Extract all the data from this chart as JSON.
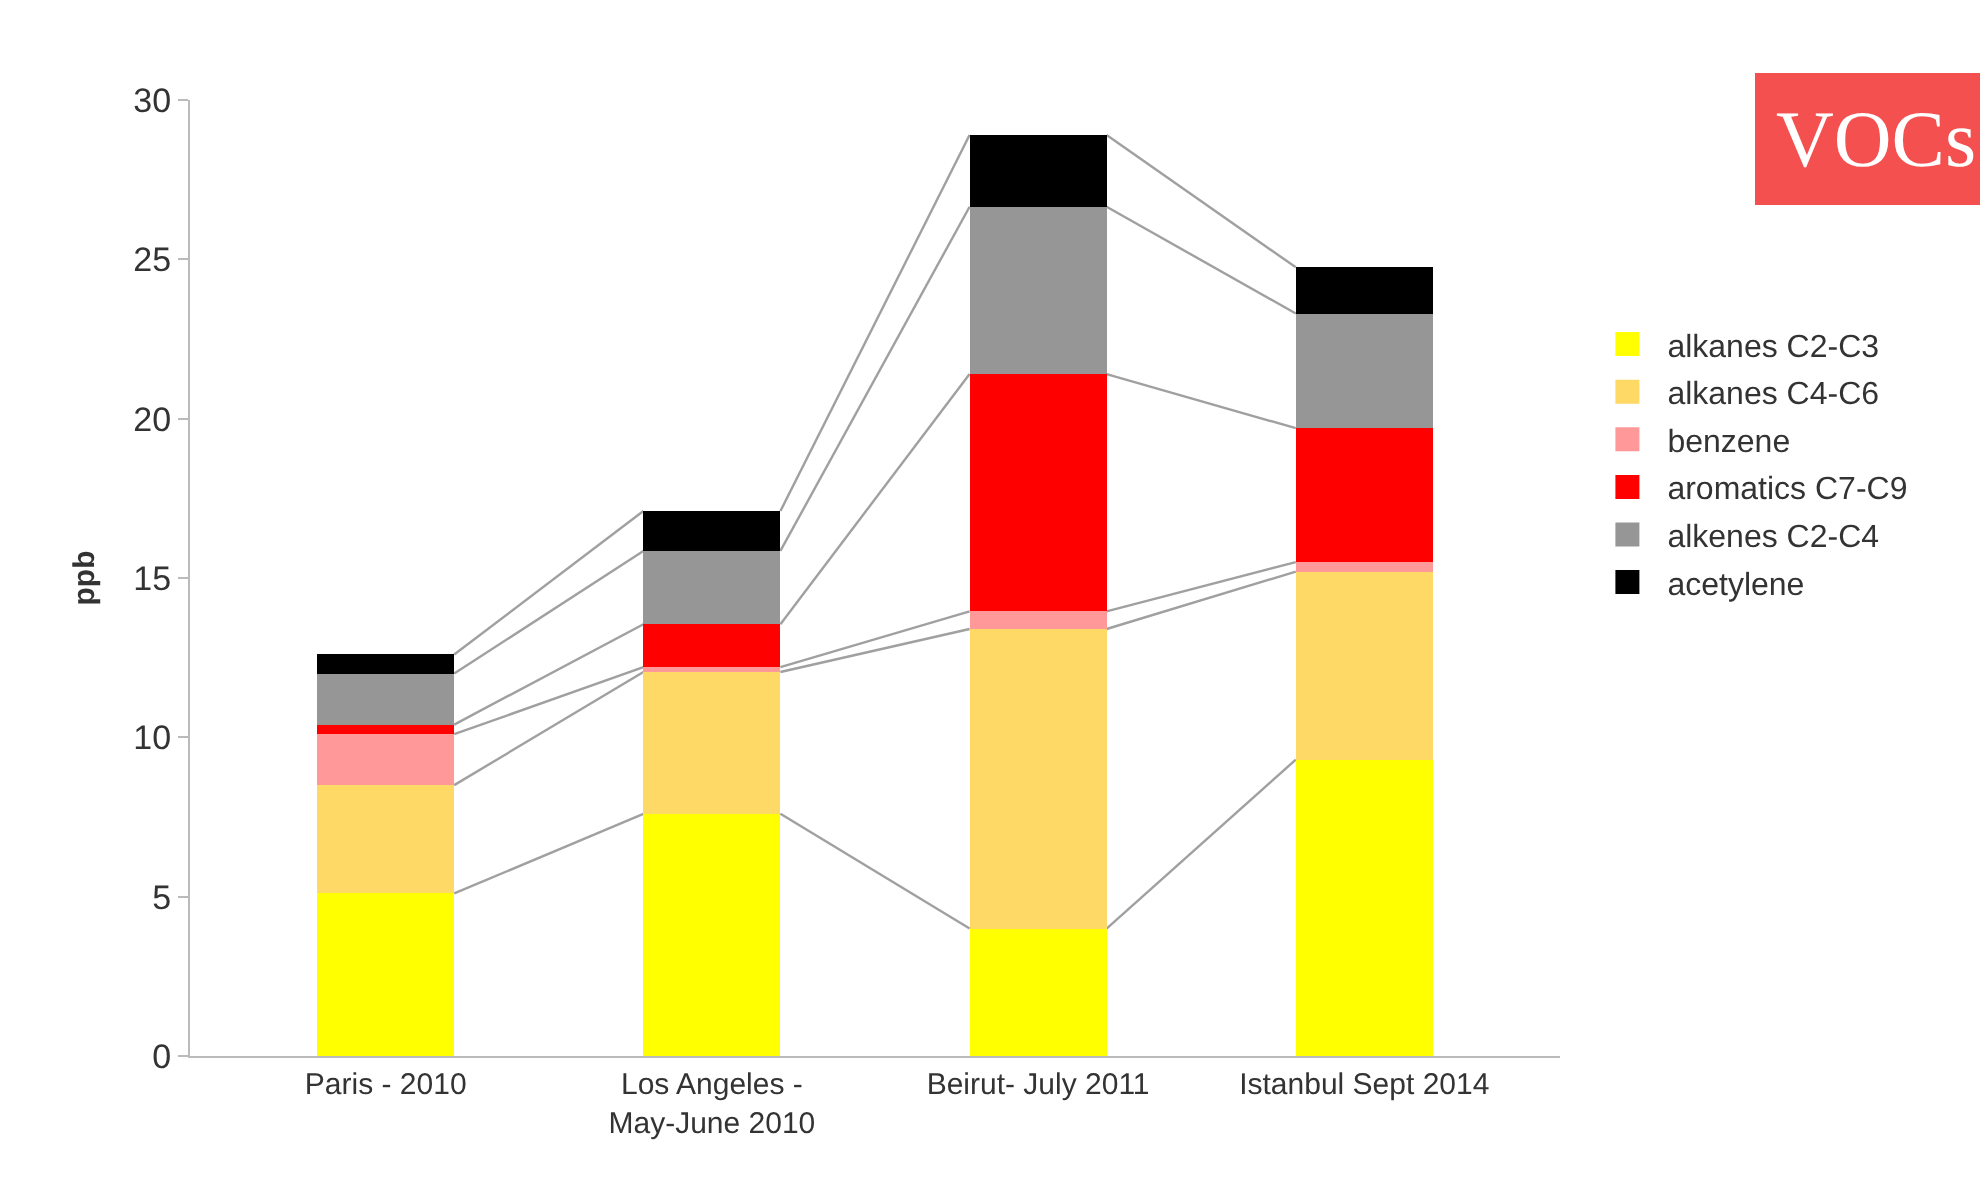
{
  "chart_data": {
    "type": "bar",
    "stacked": true,
    "ylabel": "ppb",
    "categories": [
      "Paris - 2010",
      "Los Angeles - May-June 2010",
      "Beirut- July 2011",
      "Istanbul Sept 2014"
    ],
    "series": [
      {
        "name": "alkanes C2-C3",
        "color": "#ffff00",
        "values": [
          5.1,
          7.6,
          4.0,
          9.3
        ]
      },
      {
        "name": "alkanes C4-C6",
        "color": "#ffd966",
        "values": [
          3.4,
          4.45,
          9.4,
          5.9
        ]
      },
      {
        "name": "benzene",
        "color": "#ff9999",
        "values": [
          1.6,
          0.15,
          0.55,
          0.3
        ]
      },
      {
        "name": "aromatics C7-C9",
        "color": "#ff0000",
        "values": [
          0.3,
          1.35,
          7.45,
          4.2
        ]
      },
      {
        "name": "alkenes C2-C4",
        "color": "#969696",
        "values": [
          1.6,
          2.3,
          5.25,
          3.6
        ]
      },
      {
        "name": "acetylene",
        "color": "#000000",
        "values": [
          0.6,
          1.25,
          2.25,
          1.45
        ]
      }
    ],
    "ylim": [
      0,
      30
    ],
    "yticks": [
      0,
      5,
      10,
      15,
      20,
      25,
      30
    ],
    "grid": false,
    "legend": "right",
    "annotations": [
      "VOCs"
    ]
  }
}
